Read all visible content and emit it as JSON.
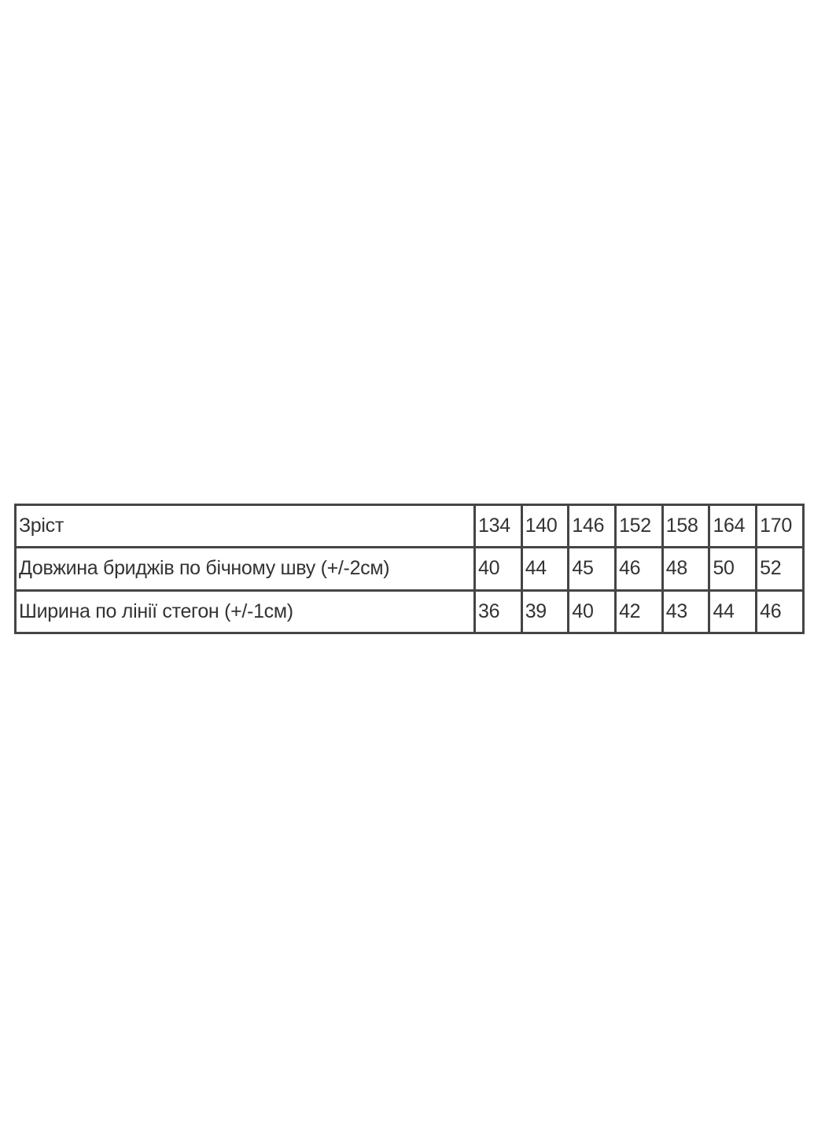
{
  "table": {
    "header": {
      "label": "Зріст",
      "values": [
        "134",
        "140",
        "146",
        "152",
        "158",
        "164",
        "170"
      ]
    },
    "rows": [
      {
        "label": "Довжина бриджів по бічному шву (+/-2см)",
        "values": [
          "40",
          "44",
          "45",
          "46",
          "48",
          "50",
          "52"
        ]
      },
      {
        "label": "Ширина по лінії стегон (+/-1см)",
        "values": [
          "36",
          "39",
          "40",
          "42",
          "43",
          "44",
          "46"
        ]
      }
    ]
  }
}
